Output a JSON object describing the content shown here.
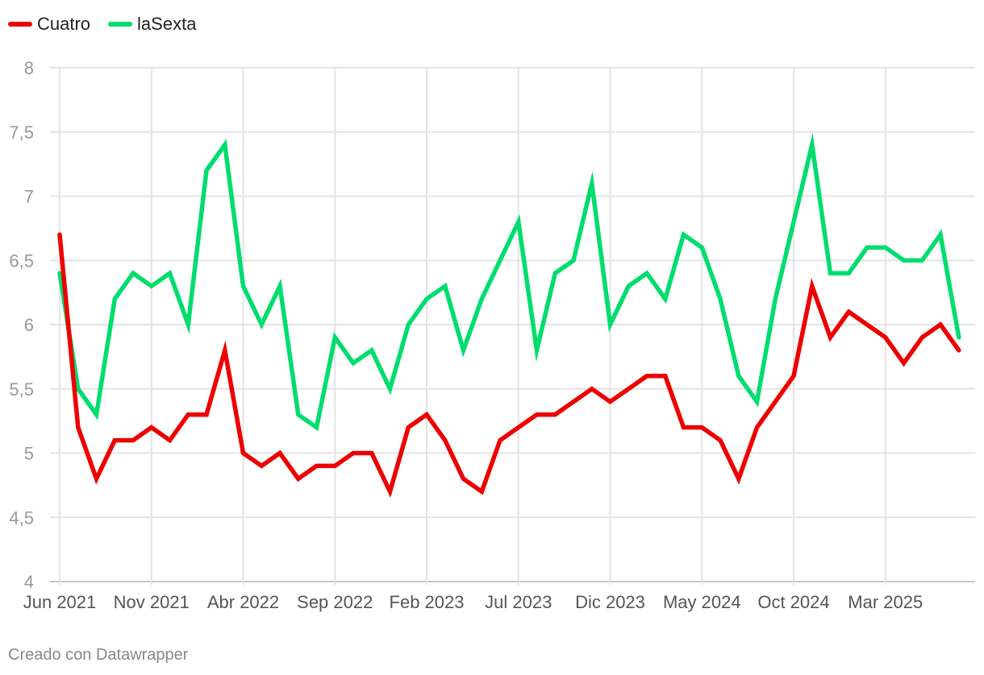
{
  "legend": {
    "items": [
      {
        "label": "Cuatro",
        "color": "#ee0000"
      },
      {
        "label": "laSexta",
        "color": "#00dd6e"
      }
    ]
  },
  "footer": {
    "credit": "Creado con Datawrapper"
  },
  "chart_data": {
    "type": "line",
    "title": "",
    "xlabel": "",
    "ylabel": "",
    "ylim": [
      4,
      8
    ],
    "yticks": [
      "4",
      "4,5",
      "5",
      "5,5",
      "6",
      "6,5",
      "7",
      "7,5",
      "8"
    ],
    "xtick_labels": [
      "Jun 2021",
      "Nov 2021",
      "Abr 2022",
      "Sep 2022",
      "Feb 2023",
      "Jul 2023",
      "Dic 2023",
      "May 2024",
      "Oct 2024",
      "Mar 2025"
    ],
    "x_start": "Jun 2021",
    "x_end": "Jul 2025",
    "series": [
      {
        "name": "Cuatro",
        "color": "#ee0000",
        "values": [
          6.7,
          5.2,
          4.8,
          5.1,
          5.1,
          5.2,
          5.1,
          5.3,
          5.3,
          5.8,
          5.0,
          4.9,
          5.0,
          4.8,
          4.9,
          4.9,
          5.0,
          5.0,
          4.7,
          5.2,
          5.3,
          5.1,
          4.8,
          4.7,
          5.1,
          5.2,
          5.3,
          5.3,
          5.4,
          5.5,
          5.4,
          5.5,
          5.6,
          5.6,
          5.2,
          5.2,
          5.1,
          4.8,
          5.2,
          5.4,
          5.6,
          6.3,
          5.9,
          6.1,
          6.0,
          5.9,
          5.7,
          5.9,
          6.0,
          5.8
        ]
      },
      {
        "name": "laSexta",
        "color": "#00dd6e",
        "values": [
          6.4,
          5.5,
          5.3,
          6.2,
          6.4,
          6.3,
          6.4,
          6.0,
          7.2,
          7.4,
          6.3,
          6.0,
          6.3,
          5.3,
          5.2,
          5.9,
          5.7,
          5.8,
          5.5,
          6.0,
          6.2,
          6.3,
          5.8,
          6.2,
          6.5,
          6.8,
          5.8,
          6.4,
          6.5,
          7.1,
          6.0,
          6.3,
          6.4,
          6.2,
          6.7,
          6.6,
          6.2,
          5.6,
          5.4,
          6.2,
          6.8,
          7.4,
          6.4,
          6.4,
          6.6,
          6.6,
          6.5,
          6.5,
          6.7,
          5.9
        ]
      }
    ]
  }
}
